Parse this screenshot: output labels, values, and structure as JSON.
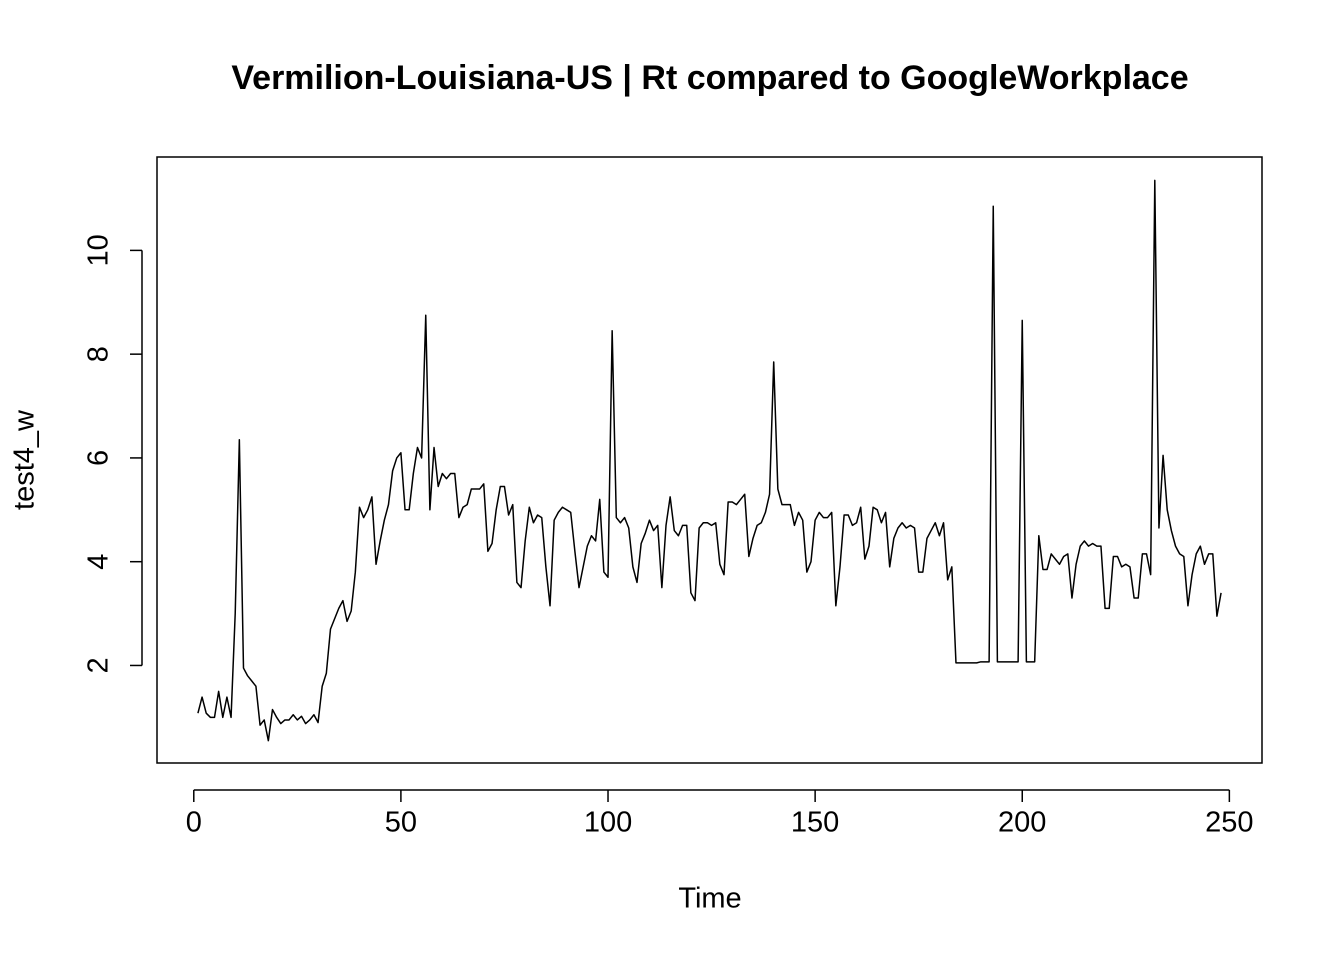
{
  "chart_data": {
    "type": "line",
    "title": "Vermilion-Louisiana-US | Rt compared to GoogleWorkplace",
    "xlabel": "Time",
    "ylabel": "test4_w",
    "color": "#000000",
    "x": [
      1,
      2,
      3,
      4,
      5,
      6,
      7,
      8,
      9,
      10,
      11,
      12,
      13,
      14,
      15,
      16,
      17,
      18,
      19,
      20,
      21,
      22,
      23,
      24,
      25,
      26,
      27,
      28,
      29,
      30,
      31,
      32,
      33,
      34,
      35,
      36,
      37,
      38,
      39,
      40,
      41,
      42,
      43,
      44,
      45,
      46,
      47,
      48,
      49,
      50,
      51,
      52,
      53,
      54,
      55,
      56,
      57,
      58,
      59,
      60,
      61,
      62,
      63,
      64,
      65,
      66,
      67,
      68,
      69,
      70,
      71,
      72,
      73,
      74,
      75,
      76,
      77,
      78,
      79,
      80,
      81,
      82,
      83,
      84,
      85,
      86,
      87,
      88,
      89,
      90,
      91,
      92,
      93,
      94,
      95,
      96,
      97,
      98,
      99,
      100,
      101,
      102,
      103,
      104,
      105,
      106,
      107,
      108,
      109,
      110,
      111,
      112,
      113,
      114,
      115,
      116,
      117,
      118,
      119,
      120,
      121,
      122,
      123,
      124,
      125,
      126,
      127,
      128,
      129,
      130,
      131,
      132,
      133,
      134,
      135,
      136,
      137,
      138,
      139,
      140,
      141,
      142,
      143,
      144,
      145,
      146,
      147,
      148,
      149,
      150,
      151,
      152,
      153,
      154,
      155,
      156,
      157,
      158,
      159,
      160,
      161,
      162,
      163,
      164,
      165,
      166,
      167,
      168,
      169,
      170,
      171,
      172,
      173,
      174,
      175,
      176,
      177,
      178,
      179,
      180,
      181,
      182,
      183,
      184,
      185,
      186,
      187,
      188,
      189,
      190,
      191,
      192,
      193,
      194,
      195,
      196,
      197,
      198,
      199,
      200,
      201,
      202,
      203,
      204,
      205,
      206,
      207,
      208,
      209,
      210,
      211,
      212,
      213,
      214,
      215,
      216,
      217,
      218,
      219,
      220,
      221,
      222,
      223,
      224,
      225,
      226,
      227,
      228,
      229,
      230,
      231,
      232,
      233,
      234,
      235,
      236,
      237,
      238,
      239,
      240,
      241,
      242,
      243,
      244,
      245,
      246,
      247,
      248
    ],
    "values": [
      1.08,
      1.39,
      1.08,
      1.0,
      1.0,
      1.5,
      1.0,
      1.39,
      1.0,
      3.0,
      6.35,
      1.95,
      1.8,
      1.7,
      1.6,
      0.85,
      0.95,
      0.55,
      1.15,
      1.0,
      0.88,
      0.95,
      0.95,
      1.05,
      0.95,
      1.02,
      0.88,
      0.95,
      1.05,
      0.9,
      1.6,
      1.85,
      2.7,
      2.9,
      3.1,
      3.25,
      2.85,
      3.05,
      3.8,
      5.05,
      4.85,
      5.0,
      5.25,
      3.95,
      4.4,
      4.8,
      5.1,
      5.75,
      6.0,
      6.1,
      5.0,
      5.0,
      5.7,
      6.2,
      6.0,
      8.75,
      5.0,
      6.2,
      5.45,
      5.7,
      5.6,
      5.7,
      5.7,
      4.85,
      5.05,
      5.1,
      5.4,
      5.4,
      5.4,
      5.5,
      4.2,
      4.35,
      5.0,
      5.45,
      5.45,
      4.9,
      5.1,
      3.6,
      3.5,
      4.4,
      5.05,
      4.75,
      4.9,
      4.85,
      3.9,
      3.15,
      4.8,
      4.95,
      5.05,
      5.0,
      4.95,
      4.2,
      3.5,
      3.9,
      4.3,
      4.5,
      4.4,
      5.2,
      3.8,
      3.7,
      8.45,
      4.85,
      4.75,
      4.85,
      4.65,
      3.9,
      3.6,
      4.35,
      4.55,
      4.8,
      4.6,
      4.7,
      3.5,
      4.7,
      5.25,
      4.6,
      4.5,
      4.7,
      4.7,
      3.4,
      3.25,
      4.65,
      4.75,
      4.75,
      4.7,
      4.75,
      3.95,
      3.75,
      5.15,
      5.15,
      5.1,
      5.2,
      5.3,
      4.1,
      4.45,
      4.7,
      4.75,
      4.95,
      5.3,
      7.85,
      5.4,
      5.1,
      5.1,
      5.1,
      4.7,
      4.95,
      4.8,
      3.8,
      4.0,
      4.8,
      4.95,
      4.85,
      4.85,
      4.95,
      3.15,
      3.9,
      4.9,
      4.9,
      4.7,
      4.75,
      5.05,
      4.05,
      4.3,
      5.05,
      5.0,
      4.75,
      4.95,
      3.9,
      4.45,
      4.65,
      4.75,
      4.65,
      4.7,
      4.65,
      3.8,
      3.8,
      4.45,
      4.6,
      4.75,
      4.5,
      4.75,
      3.65,
      3.9,
      2.05,
      2.05,
      2.05,
      2.05,
      2.05,
      2.05,
      2.07,
      2.07,
      2.07,
      10.85,
      2.07,
      2.07,
      2.07,
      2.07,
      2.07,
      2.07,
      8.65,
      2.07,
      2.07,
      2.07,
      4.5,
      3.85,
      3.85,
      4.15,
      4.05,
      3.95,
      4.1,
      4.15,
      3.3,
      3.95,
      4.3,
      4.4,
      4.3,
      4.35,
      4.3,
      4.3,
      3.1,
      3.1,
      4.1,
      4.1,
      3.9,
      3.95,
      3.9,
      3.3,
      3.3,
      4.15,
      4.15,
      3.75,
      11.35,
      4.65,
      6.05,
      5.0,
      4.6,
      4.3,
      4.15,
      4.1,
      3.15,
      3.75,
      4.15,
      4.3,
      3.95,
      4.15,
      4.15,
      2.95,
      3.4
    ],
    "xlim": [
      -8.88,
      257.88
    ],
    "ylim": [
      0.12,
      11.8
    ],
    "xticks": [
      0,
      50,
      100,
      150,
      200,
      250
    ],
    "yticks": [
      2,
      4,
      6,
      8,
      10
    ]
  }
}
